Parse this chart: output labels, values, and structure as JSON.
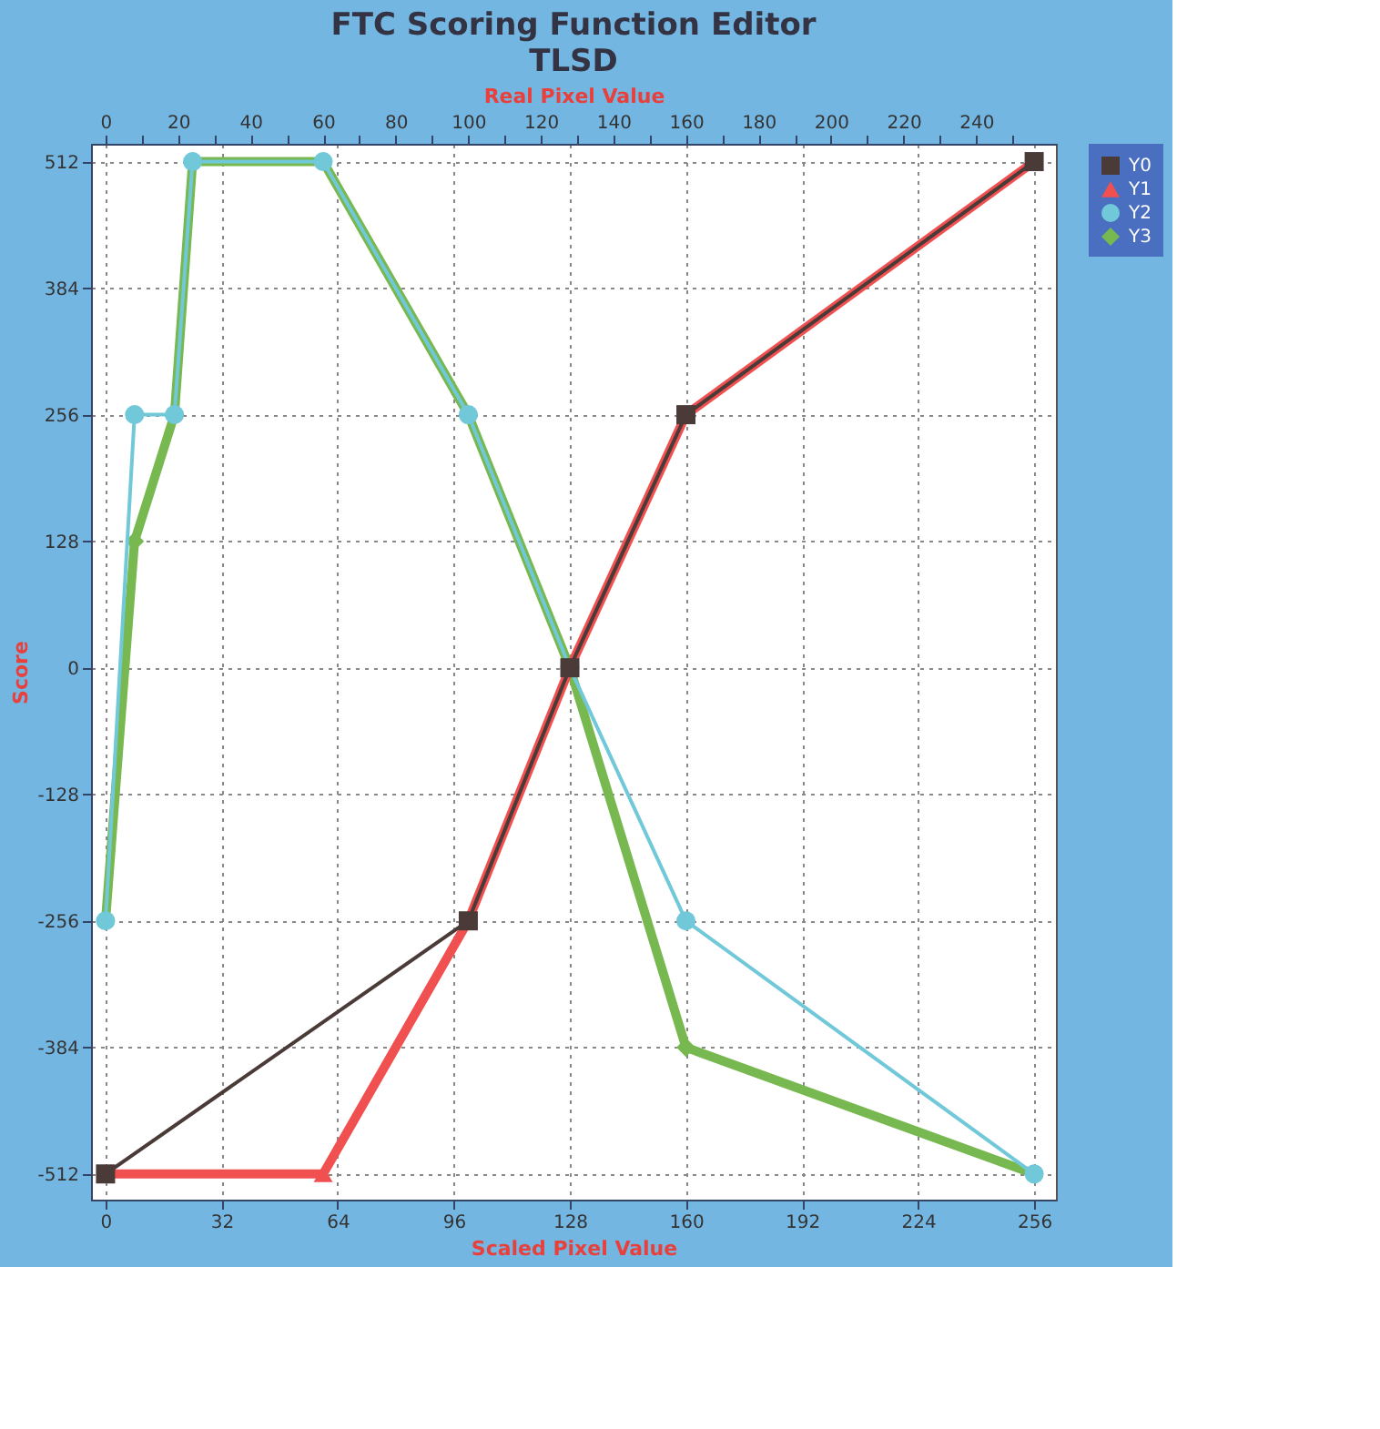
{
  "chart_data": {
    "type": "line",
    "title": "FTC Scoring Function Editor",
    "subtitle": "TLSD",
    "xlabel": "Scaled Pixel Value",
    "ylabel": "Score",
    "x2label": "Real Pixel Value",
    "x": [
      0,
      100,
      128,
      160,
      256
    ],
    "series": [
      {
        "name": "Y0",
        "color": "#4a3a38",
        "marker": "square",
        "values": [
          -512,
          -256,
          0,
          256,
          512
        ]
      },
      {
        "name": "Y1",
        "color": "#f05050",
        "marker": "triangle",
        "x": [
          0,
          60,
          100,
          128,
          160,
          256
        ],
        "values": [
          -512,
          -512,
          -256,
          0,
          256,
          512
        ]
      },
      {
        "name": "Y2",
        "color": "#70c8d8",
        "marker": "circle",
        "x": [
          0,
          8,
          19,
          24,
          60,
          100,
          128,
          160,
          256
        ],
        "values": [
          -256,
          256,
          256,
          512,
          512,
          256,
          0,
          -256,
          -512
        ]
      },
      {
        "name": "Y3",
        "color": "#78b850",
        "marker": "diamond",
        "x": [
          0,
          8,
          19,
          24,
          60,
          100,
          128,
          160,
          256
        ],
        "values": [
          -256,
          128,
          256,
          512,
          512,
          256,
          0,
          -384,
          -512
        ]
      }
    ],
    "xlim": [
      -4,
      262
    ],
    "ylim": [
      -538,
      530
    ],
    "xticks": [
      0,
      32,
      64,
      96,
      128,
      160,
      192,
      224,
      256
    ],
    "yticks": [
      -512,
      -384,
      -256,
      -128,
      0,
      128,
      256,
      384,
      512
    ],
    "x2lim": [
      -4,
      262
    ],
    "x2ticks": [
      0,
      {
        "value": 10,
        "label": null
      },
      20,
      {
        "value": 30,
        "label": null
      },
      40,
      {
        "value": 50,
        "label": null
      },
      60,
      {
        "value": 70,
        "label": null
      },
      80,
      {
        "value": 90,
        "label": null
      },
      100,
      {
        "value": 110,
        "label": null
      },
      120,
      {
        "value": 130,
        "label": null
      },
      140,
      {
        "value": 150,
        "label": null
      },
      160,
      {
        "value": 170,
        "label": null
      },
      180,
      {
        "value": 190,
        "label": null
      },
      200,
      {
        "value": 210,
        "label": null
      },
      220,
      {
        "value": 230,
        "label": null
      },
      240,
      {
        "value": 250,
        "label": null
      }
    ],
    "grid": true,
    "legend": "top right"
  }
}
